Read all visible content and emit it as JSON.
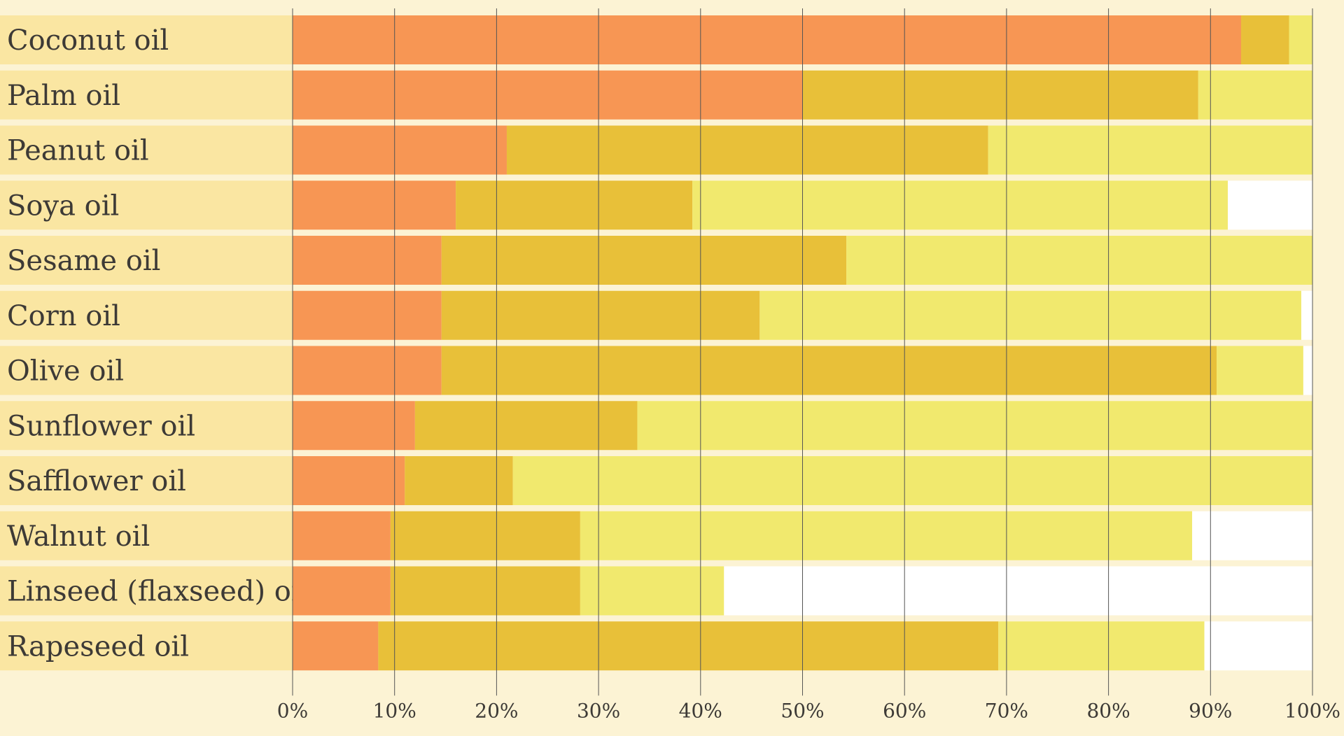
{
  "chart_data": {
    "type": "bar",
    "orientation": "horizontal",
    "stacked": true,
    "categories": [
      "Coconut oil",
      "Palm oil",
      "Peanut oil",
      "Soya oil",
      "Sesame oil",
      "Corn oil",
      "Olive oil",
      "Sunflower oil",
      "Safflower oil",
      "Walnut oil",
      "Linseed (flaxseed) oil",
      "Rapeseed oil"
    ],
    "series": [
      {
        "color": "#f79654",
        "values": [
          93,
          50,
          21,
          16,
          14.6,
          14.6,
          14.6,
          12,
          11,
          9.6,
          9.6,
          8.4
        ]
      },
      {
        "color": "#e8c039",
        "values": [
          4.7,
          38.8,
          47.2,
          23.2,
          39.7,
          31.2,
          76,
          21.8,
          10.6,
          18.6,
          18.6,
          60.8
        ]
      },
      {
        "color": "#f1e96e",
        "values": [
          2.3,
          11.2,
          31.8,
          52.5,
          45.7,
          53.1,
          8.5,
          66.2,
          78.4,
          60,
          14.1,
          20.2
        ]
      },
      {
        "color": "#ffffff",
        "values": [
          0,
          0,
          0,
          8.3,
          0,
          1.1,
          0.9,
          0,
          0,
          11.8,
          57.7,
          10.6
        ]
      }
    ],
    "xlim": [
      0,
      100
    ],
    "x_ticks": [
      "0%",
      "10%",
      "20%",
      "30%",
      "40%",
      "50%",
      "60%",
      "70%",
      "80%",
      "90%",
      "100%"
    ],
    "grid": true,
    "label_background": "#fae6a2",
    "row_background": "#fcf3d4",
    "gridline_color": "#555555"
  }
}
